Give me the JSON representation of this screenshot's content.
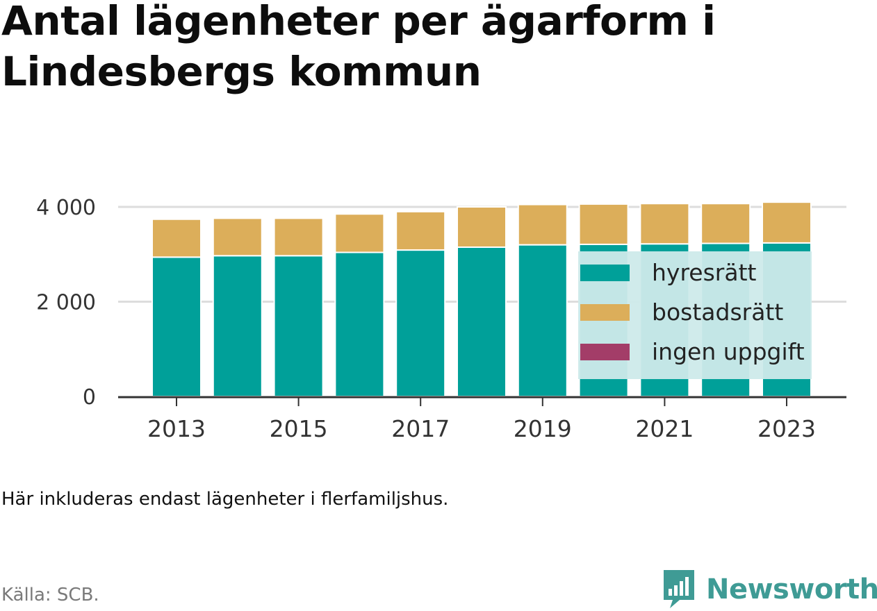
{
  "header": {
    "title": "Antal lägenheter per ägarform i Lindesbergs kommun"
  },
  "footer": {
    "note": "Här inkluderas endast lägenheter i flerfamiljshus.",
    "source": "Källa: SCB.",
    "brand": "Newsworthy"
  },
  "colors": {
    "hyresratt": "#00a099",
    "bostadsratt": "#dcae5a",
    "ingen_uppgift": "#a33d68",
    "legend_box": "#cdeaea",
    "grid": "#dddddd",
    "axis": "#333333",
    "brand": "#3f9b95"
  },
  "chart_data": {
    "type": "bar",
    "stacked": true,
    "categories": [
      "2013",
      "2014",
      "2015",
      "2016",
      "2017",
      "2018",
      "2019",
      "2020",
      "2021",
      "2022",
      "2023"
    ],
    "x_tick_labels": [
      "2013",
      "2015",
      "2017",
      "2019",
      "2021",
      "2023"
    ],
    "y_ticks": [
      0,
      2000,
      4000
    ],
    "y_tick_labels": [
      "0",
      "2 000",
      "4 000"
    ],
    "ylim": [
      0,
      4000
    ],
    "grid": "horizontal",
    "legend_position": "inside-right",
    "series": [
      {
        "name": "hyresrätt",
        "values": [
          2940,
          2970,
          2970,
          3040,
          3090,
          3150,
          3200,
          3210,
          3220,
          3230,
          3240
        ]
      },
      {
        "name": "bostadsrätt",
        "values": [
          800,
          790,
          790,
          810,
          810,
          850,
          850,
          850,
          850,
          840,
          860
        ]
      },
      {
        "name": "ingen uppgift",
        "values": [
          0,
          0,
          0,
          0,
          0,
          0,
          0,
          0,
          0,
          0,
          0
        ]
      }
    ]
  }
}
